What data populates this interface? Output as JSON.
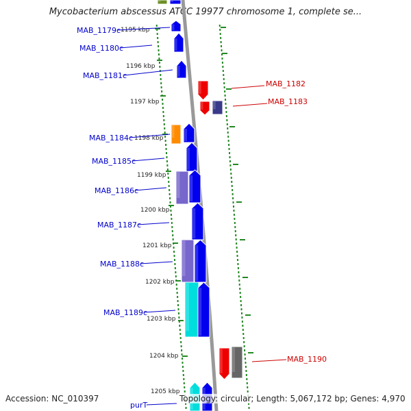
{
  "title": "Mycobacterium abscessus ATCC 19977 chromosome 1, complete se...",
  "footer": {
    "accession": "Accession: NC_010397",
    "summary": "Topology: circular; Length: 5,067,172 bp; Genes: 4,970"
  },
  "colors": {
    "forward_label": "#0000cc",
    "reverse_label": "#cc0000",
    "gc_dash": "#228822",
    "backbone": "#999999",
    "blue": "#0000ee",
    "navy": "#3a3a8a",
    "red": "#ee0000",
    "orange": "#ff8c00",
    "lavender": "#7766cc",
    "cyan": "#00dddd",
    "grey": "#666666",
    "olive": "#6b8e23"
  },
  "ticks": [
    "1195 kbp",
    "1196 kbp",
    "1197 kbp",
    "1198 kbp",
    "1199 kbp",
    "1200 kbp",
    "1201 kbp",
    "1202 kbp",
    "1203 kbp",
    "1204 kbp",
    "1205 kbp"
  ],
  "labels_left": [
    "MAB_1179c",
    "MAB_1180c",
    "MAB_1181c",
    "MAB_1184c",
    "MAB_1185c",
    "MAB_1186c",
    "MAB_1187c",
    "MAB_1188c",
    "MAB_1189c",
    "purT"
  ],
  "labels_right": [
    "MAB_1182",
    "MAB_1183",
    "MAB_1190"
  ]
}
